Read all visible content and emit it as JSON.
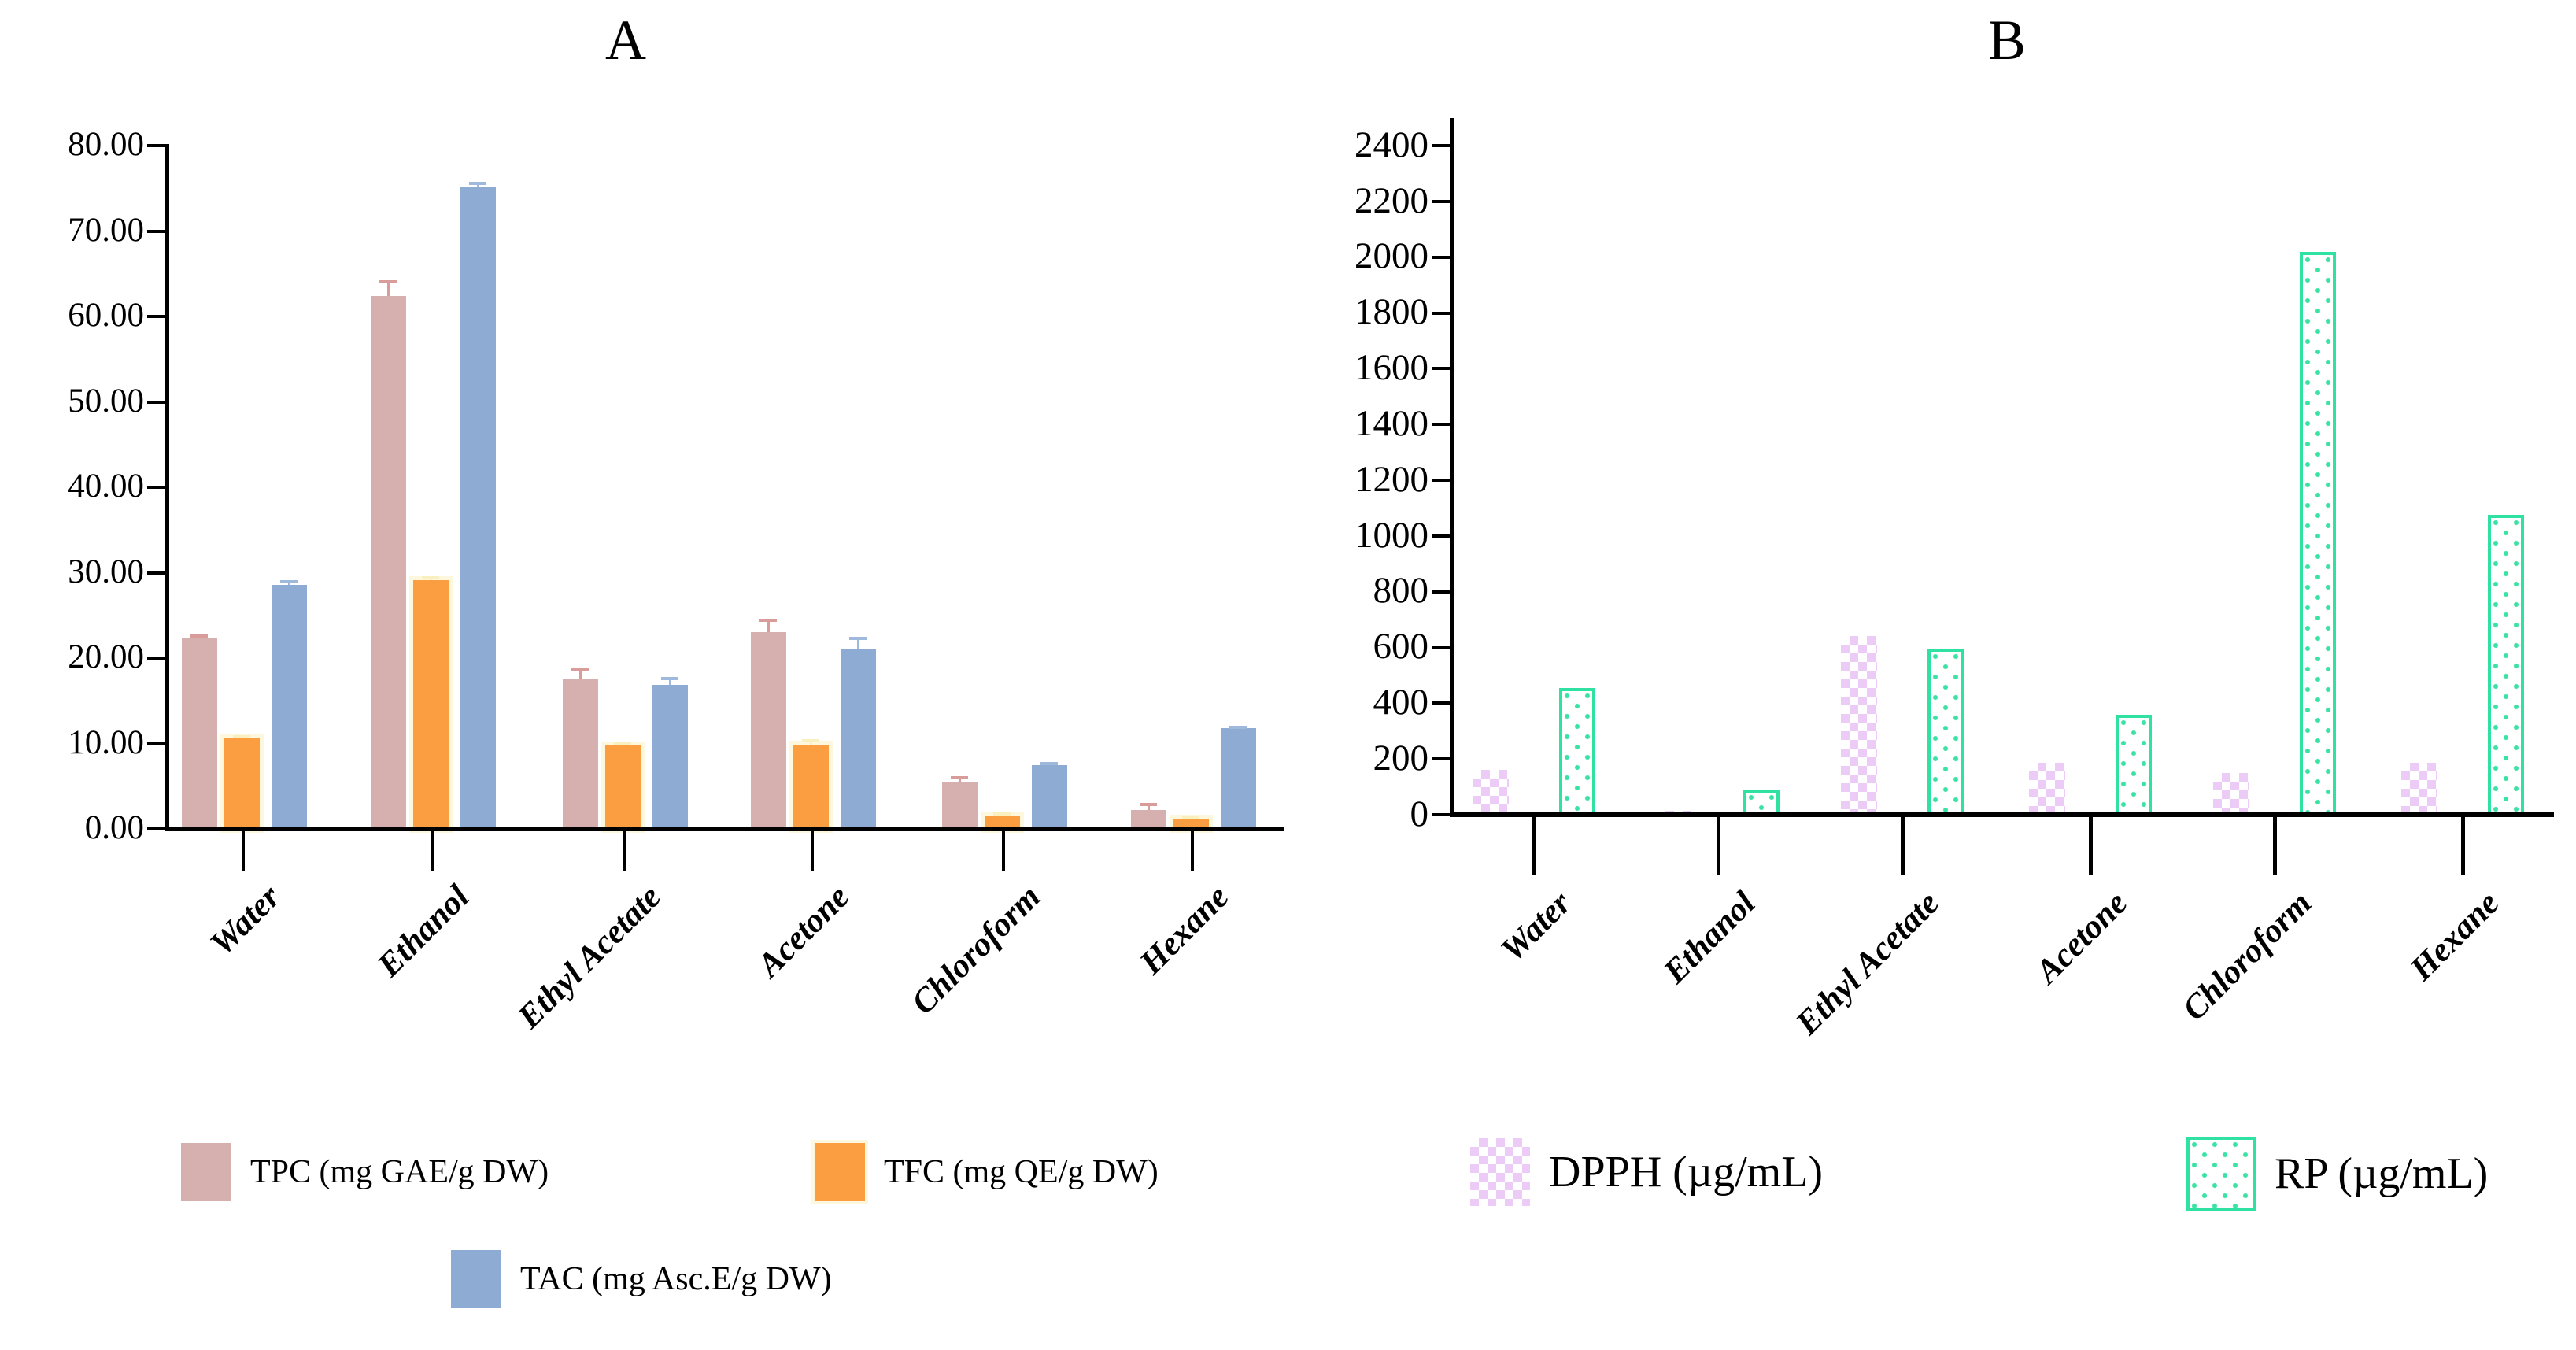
{
  "panels": [
    {
      "title": "A"
    },
    {
      "title": "B"
    }
  ],
  "categories": [
    "Water",
    "Ethanol",
    "Ethyl Acetate",
    "Acetone",
    "Chloroform",
    "Hexane"
  ],
  "chart_data": [
    {
      "type": "bar",
      "panel": "A",
      "title": "A",
      "categories": [
        "Water",
        "Ethanol",
        "Ethyl Acetate",
        "Acetone",
        "Chloroform",
        "Hexane"
      ],
      "series": [
        {
          "key": "tpc",
          "name": "TPC (mg GAE/g DW)",
          "pattern": "solid",
          "color": "#d5b0af",
          "error_color": "#d89c9b",
          "values": [
            22.3,
            62.4,
            17.5,
            23.0,
            5.4,
            2.2
          ],
          "errors": [
            0.5,
            1.8,
            1.3,
            1.6,
            0.8,
            0.8
          ]
        },
        {
          "key": "tfc",
          "name": "TFC (mg QE/g DW)",
          "pattern": "solid",
          "color": "#fb9e42",
          "halo": "#fdf8dd",
          "error_color": "#faf0bf",
          "values": [
            10.6,
            29.1,
            9.8,
            9.9,
            1.6,
            1.2
          ],
          "errors": [
            0.4,
            0.5,
            0.4,
            0.6,
            0.3,
            0.3
          ]
        },
        {
          "key": "tac",
          "name": "TAC (mg Asc.E/g DW)",
          "pattern": "solid",
          "color": "#8dabd3",
          "error_color": "#9fb9dc",
          "values": [
            28.6,
            75.2,
            16.9,
            21.1,
            7.5,
            11.8
          ],
          "errors": [
            0.5,
            0.6,
            0.9,
            1.4,
            0.3,
            0.3
          ]
        }
      ],
      "ylim": [
        0,
        80
      ],
      "ytick_step": 10,
      "ytick_decimals": 2,
      "grid": false,
      "legend_position": "bottom"
    },
    {
      "type": "bar",
      "panel": "B",
      "title": "B",
      "categories": [
        "Water",
        "Ethanol",
        "Ethyl Acetate",
        "Acetone",
        "Chloroform",
        "Hexane"
      ],
      "series": [
        {
          "key": "dpph",
          "name": "DPPH (µg/mL)",
          "pattern": "checker",
          "color": "#ecccf6",
          "values": [
            160,
            15,
            640,
            185,
            150,
            185
          ]
        },
        {
          "key": "rp",
          "name": "RP (µg/mL)",
          "pattern": "dots",
          "color": "#2fe2a1",
          "values": [
            455,
            90,
            595,
            360,
            2020,
            1075
          ]
        }
      ],
      "ylim": [
        0,
        2400
      ],
      "ytick_step": 200,
      "ytick_decimals": 0,
      "grid": false,
      "legend_position": "bottom"
    }
  ],
  "legend": {
    "row1": [
      {
        "label": "TPC (mg GAE/g DW)",
        "swatch": "tpc"
      },
      {
        "label": "TFC (mg QE/g DW)",
        "swatch": "tfc"
      },
      {
        "label": "DPPH (µg/mL)",
        "swatch": "dpph"
      },
      {
        "label": "RP (µg/mL)",
        "swatch": "rp"
      }
    ],
    "row2": [
      {
        "label": "TAC (mg Asc.E/g DW)",
        "swatch": "tac"
      }
    ]
  },
  "colors": {
    "tpc_bar": "#d5b0af",
    "tfc_bar": "#fb9e42",
    "tfc_halo": "#fdf8dd",
    "tac_bar": "#8dabd3",
    "dpph_pattern": "#ecccf6",
    "rp_pattern": "#2fe2a1",
    "axis": "#000000",
    "background": "#ffffff"
  }
}
